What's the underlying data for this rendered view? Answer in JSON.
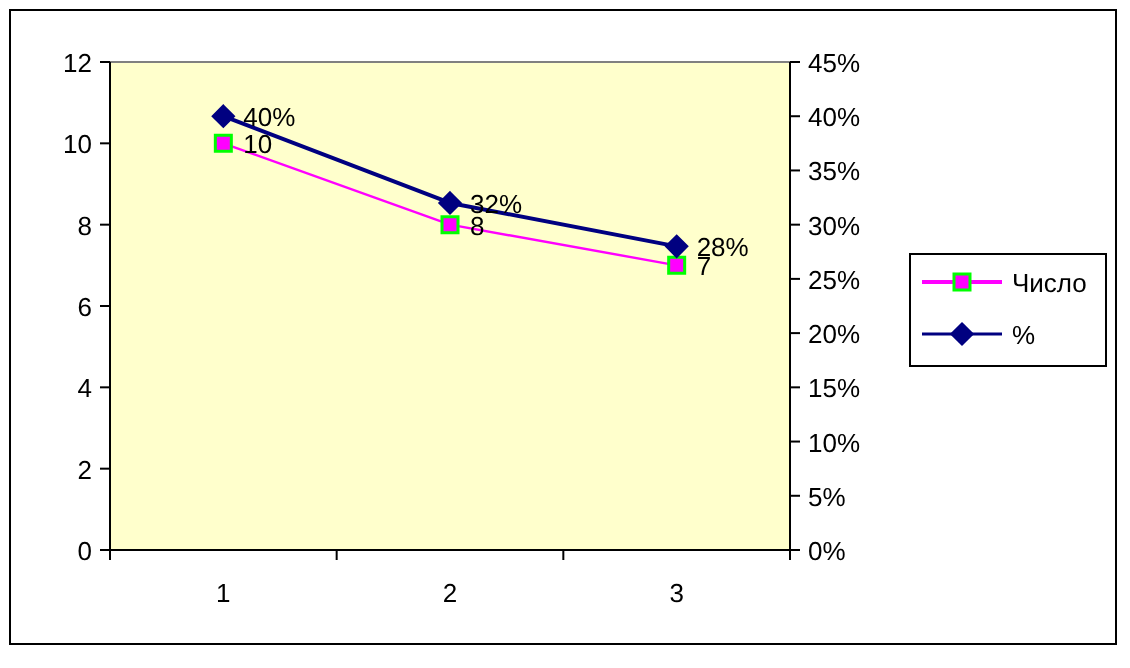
{
  "chart_data": {
    "type": "line",
    "categories": [
      "1",
      "2",
      "3"
    ],
    "series": [
      {
        "name": "Число",
        "color": "#ff00ff",
        "marker": "square",
        "values": [
          10,
          8,
          7
        ],
        "value_labels": [
          "10",
          "8",
          "7"
        ]
      },
      {
        "name": "%",
        "color": "#000080",
        "marker": "diamond",
        "axis": "y2",
        "values": [
          40,
          32,
          28
        ],
        "value_labels": [
          "40%",
          "32%",
          "28%"
        ]
      }
    ],
    "ylim": [
      0,
      12
    ],
    "yticks": [
      0,
      2,
      4,
      6,
      8,
      10,
      12
    ],
    "y2lim": [
      0,
      45
    ],
    "y2ticks": [
      {
        "value": 0,
        "label": "0%"
      },
      {
        "value": 5,
        "label": "5%"
      },
      {
        "value": 10,
        "label": "10%"
      },
      {
        "value": 15,
        "label": "15%"
      },
      {
        "value": 20,
        "label": "20%"
      },
      {
        "value": 25,
        "label": "25%"
      },
      {
        "value": 30,
        "label": "30%"
      },
      {
        "value": 35,
        "label": "35%"
      },
      {
        "value": 40,
        "label": "40%"
      },
      {
        "value": 45,
        "label": "45%"
      }
    ],
    "grid": false,
    "legend": "right"
  }
}
